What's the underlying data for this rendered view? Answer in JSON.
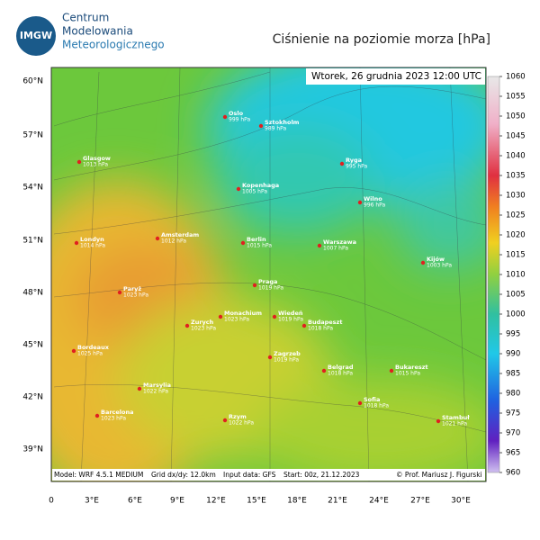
{
  "header": {
    "logo": "IMGW",
    "org": [
      "Centrum",
      "Modelowania",
      "Meteorologicznego"
    ],
    "title": "Ciśnienie na poziomie morza [hPa]"
  },
  "map": {
    "timestamp": "Wtorek, 26 grudnia 2023 12:00 UTC",
    "lat_labels": [
      "60°N",
      "57°N",
      "54°N",
      "51°N",
      "48°N",
      "45°N",
      "42°N",
      "39°N"
    ],
    "lon_labels": [
      "0",
      "3°E",
      "6°E",
      "9°E",
      "12°E",
      "15°E",
      "18°E",
      "21°E",
      "24°E",
      "27°E",
      "30°E"
    ],
    "cities": [
      {
        "name": "Oslo",
        "pressure": "999 hPa"
      },
      {
        "name": "Sztokholm",
        "pressure": "989 hPa"
      },
      {
        "name": "Glasgow",
        "pressure": "1013 hPa"
      },
      {
        "name": "Ryga",
        "pressure": "995 hPa"
      },
      {
        "name": "Kopenhaga",
        "pressure": "1005 hPa"
      },
      {
        "name": "Wilno",
        "pressure": "996 hPa"
      },
      {
        "name": "Amsterdam",
        "pressure": "1012 hPa"
      },
      {
        "name": "Londyn",
        "pressure": "1014 hPa"
      },
      {
        "name": "Berlin",
        "pressure": "1015 hPa"
      },
      {
        "name": "Warszawa",
        "pressure": "1007 hPa"
      },
      {
        "name": "Kijów",
        "pressure": "1003 hPa"
      },
      {
        "name": "Paryż",
        "pressure": "1023 hPa"
      },
      {
        "name": "Praga",
        "pressure": "1019 hPa"
      },
      {
        "name": "Monachium",
        "pressure": "1023 hPa"
      },
      {
        "name": "Zurych",
        "pressure": "1023 hPa"
      },
      {
        "name": "Wiedeń",
        "pressure": "1019 hPa"
      },
      {
        "name": "Budapeszt",
        "pressure": "1018 hPa"
      },
      {
        "name": "Bordeaux",
        "pressure": "1025 hPa"
      },
      {
        "name": "Zagrzeb",
        "pressure": "1019 hPa"
      },
      {
        "name": "Belgrad",
        "pressure": "1018 hPa"
      },
      {
        "name": "Bukareszt",
        "pressure": "1015 hPa"
      },
      {
        "name": "Marsylia",
        "pressure": "1022 hPa"
      },
      {
        "name": "Sofia",
        "pressure": "1018 hPa"
      },
      {
        "name": "Barcelona",
        "pressure": "1023 hPa"
      },
      {
        "name": "Rzym",
        "pressure": "1022 hPa"
      },
      {
        "name": "Stambuł",
        "pressure": "1021 hPa"
      }
    ],
    "footer": [
      "Model: WRF 4.5.1 MEDIUM",
      "Grid dx/dy: 12.0km",
      "Input data: GFS",
      "Start: 00z, 21.12.2023",
      "© Prof. Mariusz J. Figurski"
    ]
  },
  "colorbar": {
    "ticks": [
      1060,
      1055,
      1050,
      1045,
      1040,
      1035,
      1030,
      1025,
      1020,
      1015,
      1010,
      1005,
      1000,
      995,
      990,
      985,
      980,
      975,
      970,
      965,
      960
    ]
  }
}
